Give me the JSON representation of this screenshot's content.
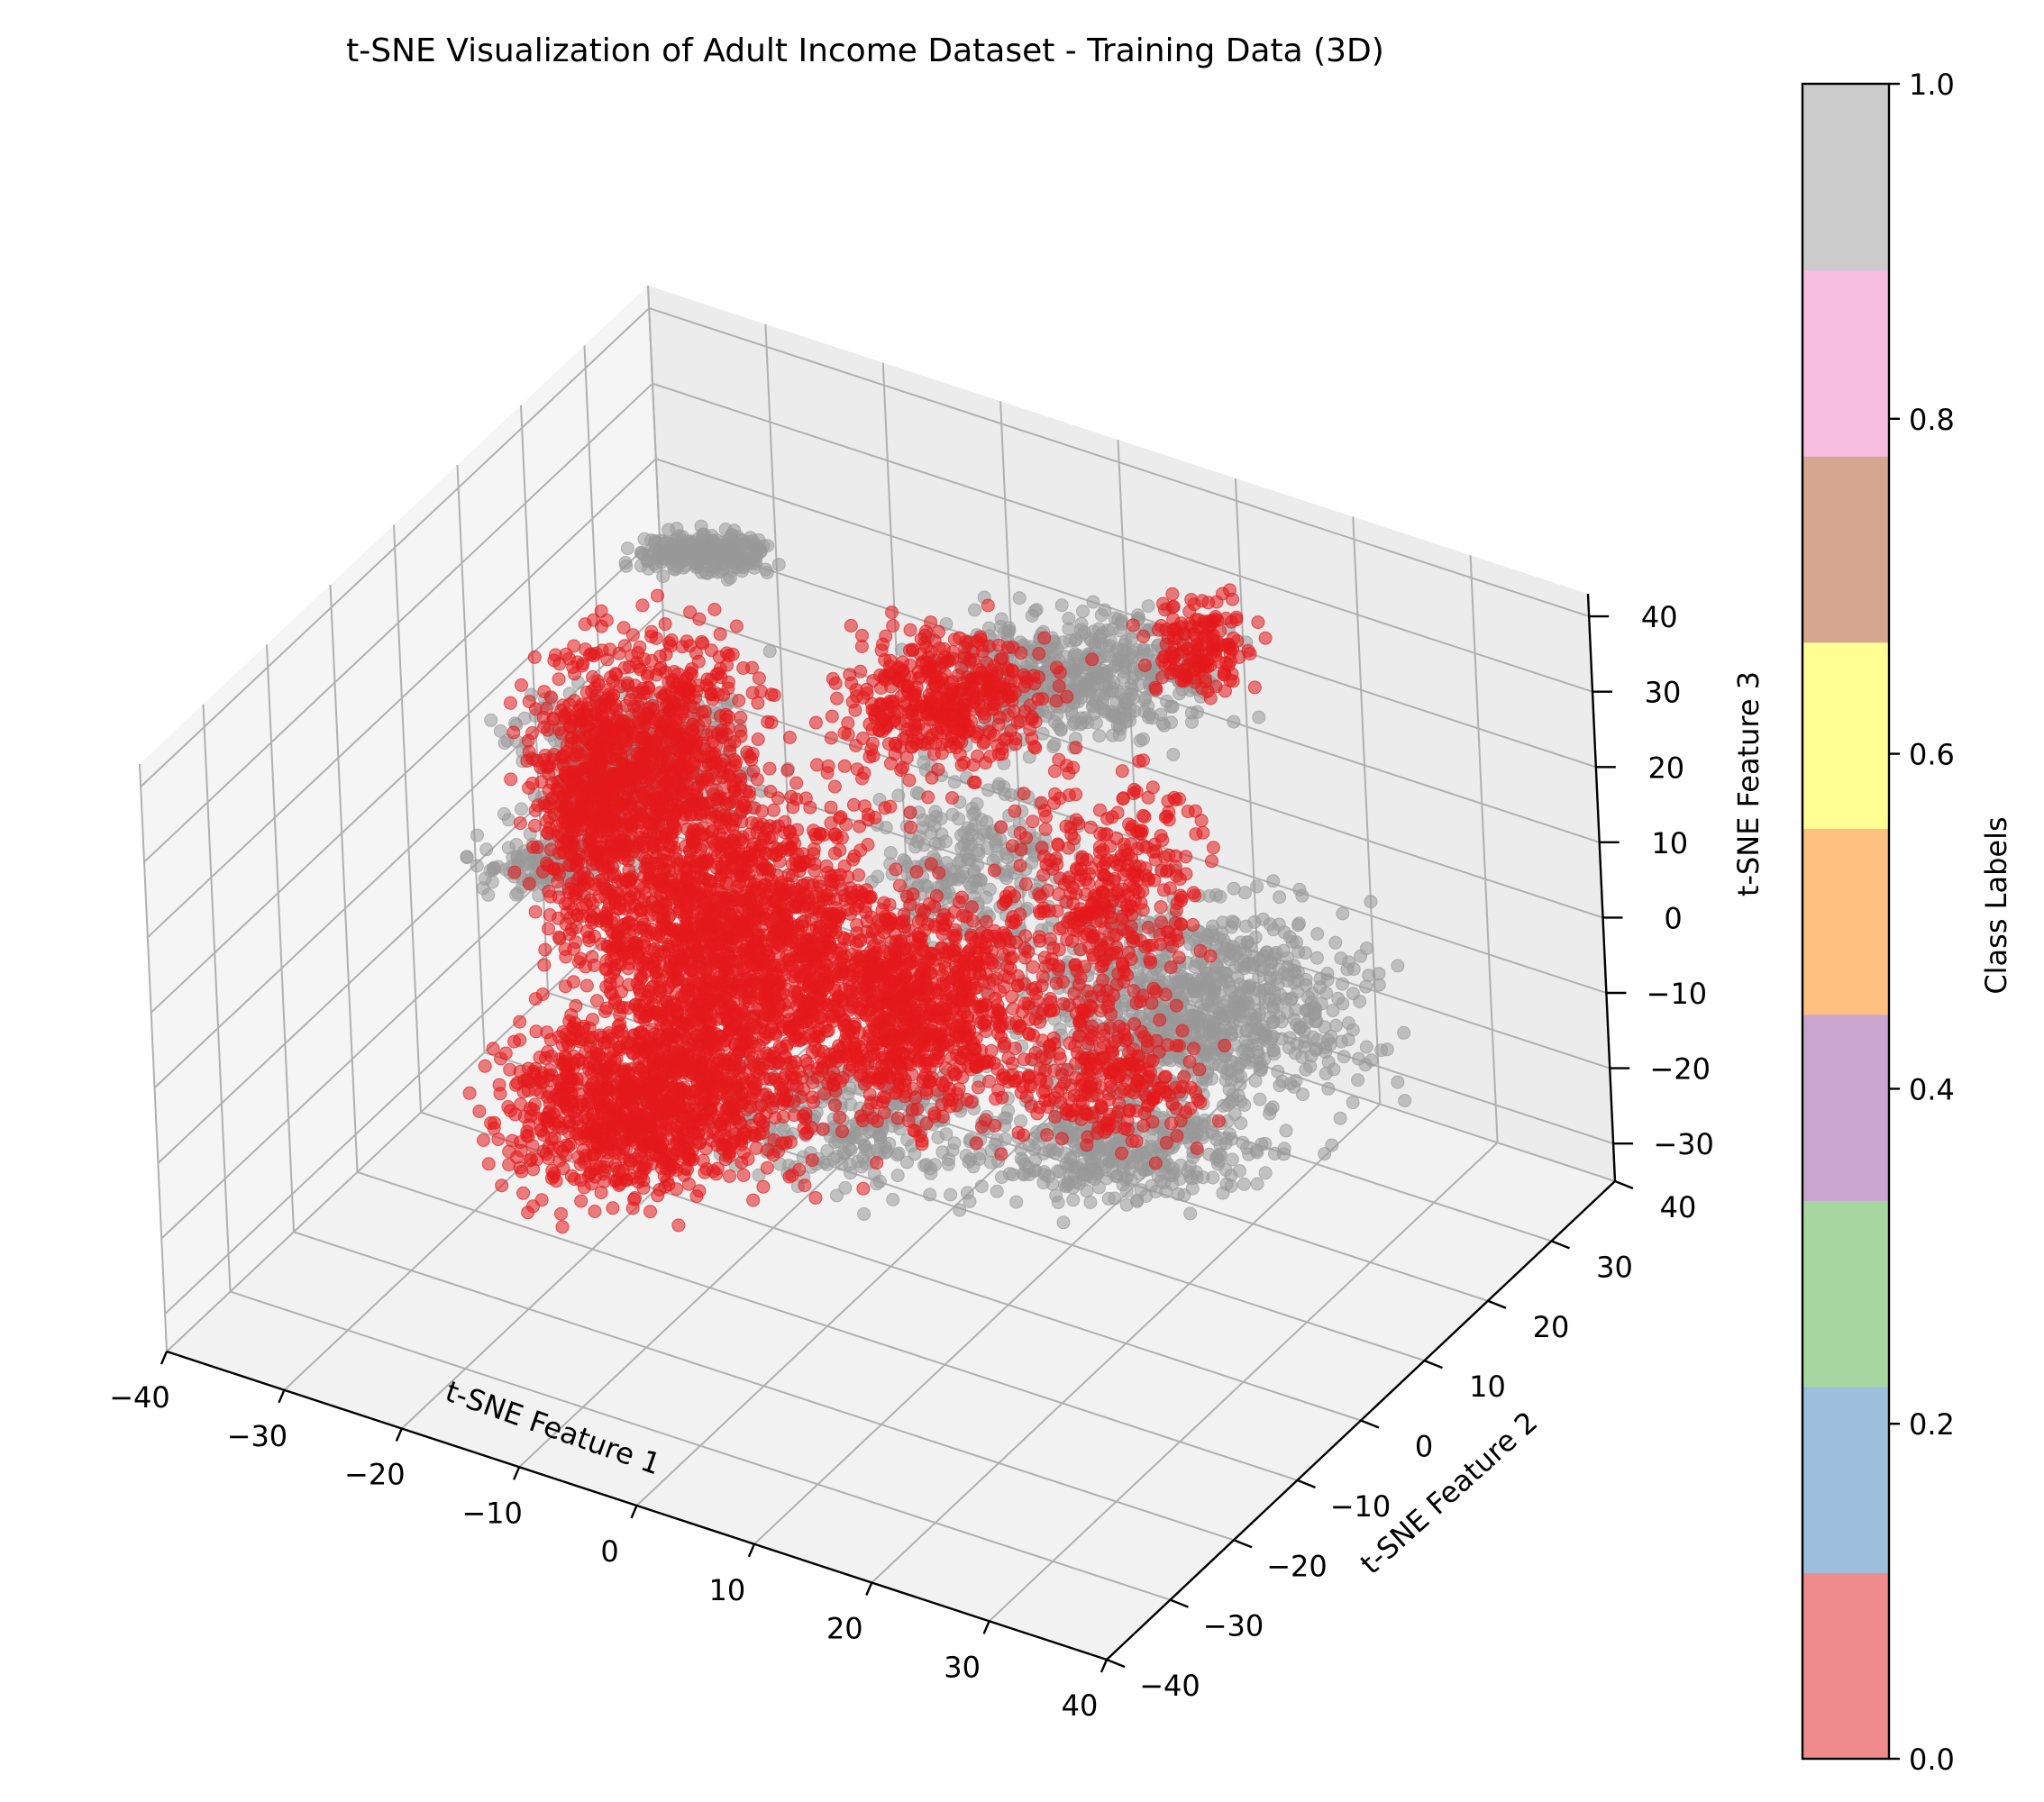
{
  "chart_data": {
    "type": "scatter",
    "title": "t-SNE Visualization of Adult Income Dataset - Training Data (3D)",
    "xlabel": "t-SNE Feature 1",
    "ylabel": "t-SNE Feature 2",
    "zlabel": "t-SNE Feature 3",
    "projection": "3d",
    "xlim": [
      -40,
      40
    ],
    "ylim": [
      -40,
      40
    ],
    "zlim": [
      -35,
      43
    ],
    "xticks": [
      "−40",
      "−30",
      "−20",
      "−10",
      "0",
      "10",
      "20",
      "30",
      "40"
    ],
    "yticks": [
      "−40",
      "−30",
      "−20",
      "−10",
      "0",
      "10",
      "20",
      "30",
      "40"
    ],
    "zticks": [
      "−30",
      "−20",
      "−10",
      "0",
      "10",
      "20",
      "30",
      "40"
    ],
    "grid": true,
    "colormap": "Set1",
    "colorbar": {
      "label": "Class Labels",
      "ticks": [
        "0.0",
        "0.2",
        "0.4",
        "0.6",
        "0.8",
        "1.0"
      ],
      "colors": [
        "#ef8b8b",
        "#9bbfdc",
        "#a7d7a0",
        "#caa5d0",
        "#ffbf7e",
        "#ffff93",
        "#d4a78e",
        "#f7bde0",
        "#cbcbcb"
      ]
    },
    "series": [
      {
        "class": 0,
        "color": "#e41a1c"
      },
      {
        "class": 1,
        "color": "#999999"
      }
    ]
  }
}
